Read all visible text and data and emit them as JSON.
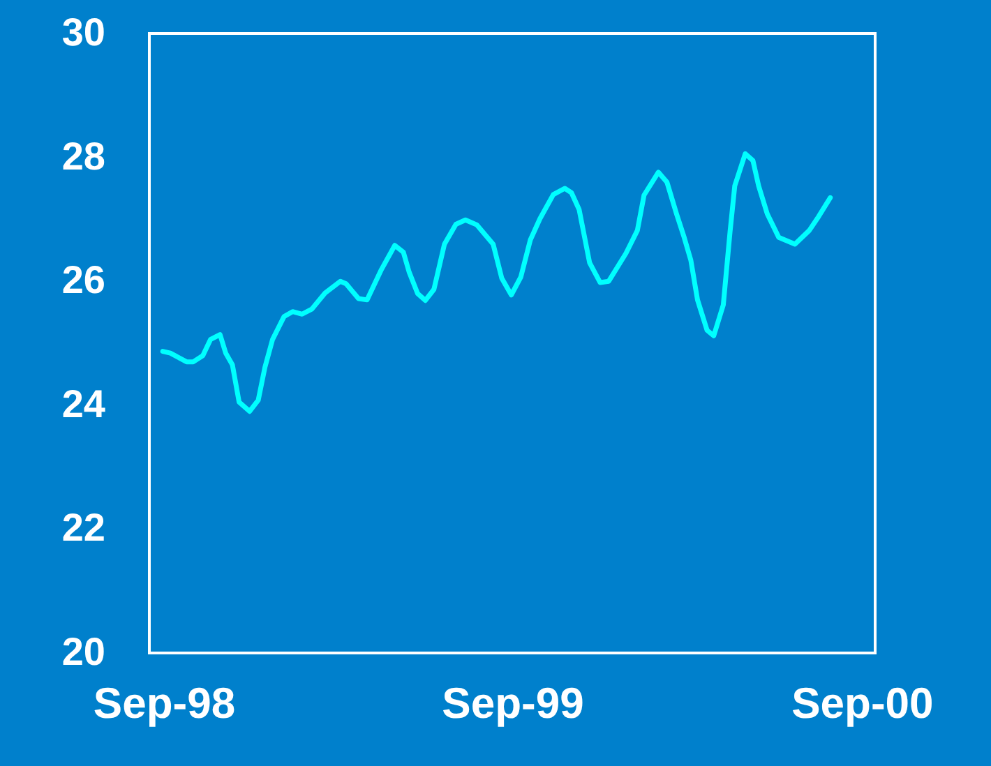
{
  "chart_data": {
    "type": "line",
    "x": [
      "1998-08-31",
      "1998-09-08",
      "1998-09-25",
      "1998-10-02",
      "1998-10-12",
      "1998-10-20",
      "1998-10-30",
      "1998-11-05",
      "1998-11-12",
      "1998-11-19",
      "1998-11-30",
      "1998-12-09",
      "1998-12-16",
      "1998-12-24",
      "1999-01-05",
      "1999-01-14",
      "1999-01-24",
      "1999-02-03",
      "1999-02-17",
      "1999-03-05",
      "1999-03-11",
      "1999-03-24",
      "1999-04-02",
      "1999-04-17",
      "1999-05-01",
      "1999-05-10",
      "1999-05-16",
      "1999-05-25",
      "1999-06-02",
      "1999-06-11",
      "1999-06-22",
      "1999-07-04",
      "1999-07-14",
      "1999-07-26",
      "1999-08-12",
      "1999-08-21",
      "1999-08-31",
      "1999-09-10",
      "1999-09-20",
      "1999-09-30",
      "1999-10-14",
      "1999-10-26",
      "1999-11-02",
      "1999-11-10",
      "1999-11-21",
      "1999-12-02",
      "1999-12-11",
      "1999-12-29",
      "2000-01-10",
      "2000-01-17",
      "2000-02-01",
      "2000-02-10",
      "2000-02-20",
      "2000-02-28",
      "2000-03-06",
      "2000-03-13",
      "2000-03-23",
      "2000-03-30",
      "2000-04-09",
      "2000-04-16",
      "2000-04-21",
      "2000-05-02",
      "2000-05-10",
      "2000-05-16",
      "2000-05-25",
      "2000-06-06",
      "2000-06-23",
      "2000-07-08",
      "2000-07-18",
      "2000-07-30"
    ],
    "series": [
      {
        "color": "#00ffff",
        "values": [
          24.87,
          24.84,
          24.7,
          24.7,
          24.8,
          25.06,
          25.14,
          24.84,
          24.65,
          24.05,
          23.9,
          24.08,
          24.61,
          25.06,
          25.43,
          25.51,
          25.47,
          25.55,
          25.81,
          26.0,
          25.96,
          25.72,
          25.7,
          26.19,
          26.58,
          26.47,
          26.15,
          25.8,
          25.69,
          25.87,
          26.6,
          26.92,
          26.99,
          26.91,
          26.6,
          26.05,
          25.78,
          26.07,
          26.67,
          27.01,
          27.4,
          27.5,
          27.43,
          27.16,
          26.3,
          25.98,
          26.0,
          26.45,
          26.82,
          27.39,
          27.76,
          27.6,
          27.09,
          26.71,
          26.34,
          25.7,
          25.21,
          25.12,
          25.62,
          26.79,
          27.54,
          28.06,
          27.95,
          27.54,
          27.09,
          26.71,
          26.6,
          26.82,
          27.05,
          27.35
        ]
      }
    ],
    "xlim": [
      "1998-08-17",
      "2000-09-15"
    ],
    "xticks": [
      {
        "value": "1998-09-01",
        "label": "Sep-98"
      },
      {
        "value": "1999-09-01",
        "label": "Sep-99"
      },
      {
        "value": "2000-09-01",
        "label": "Sep-00"
      }
    ],
    "ylim": [
      20,
      30
    ],
    "yticks": [
      20,
      22,
      24,
      26,
      28,
      30
    ],
    "grid": false,
    "legend": false,
    "marker": "none",
    "line_style": "solid"
  }
}
